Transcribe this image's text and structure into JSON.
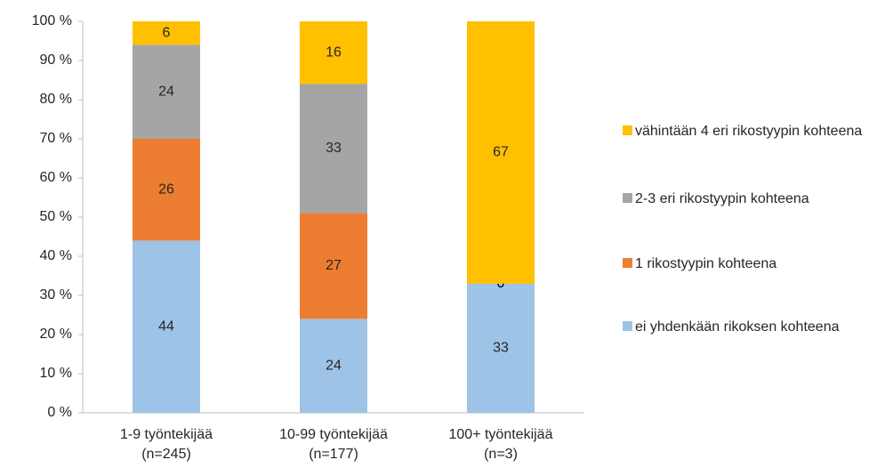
{
  "chart_data": {
    "type": "stacked_bar",
    "categories": [
      "1-9 työntekijää\n(n=245)",
      "10-99 työntekijää\n(n=177)",
      "100+ työntekijää\n(n=3)"
    ],
    "series": [
      {
        "name": "ei yhdenkään rikoksen kohteena",
        "color": "#9DC3E6",
        "values": [
          44,
          24,
          33
        ]
      },
      {
        "name": "1 rikostyypin kohteena",
        "color": "#ED7D31",
        "values": [
          26,
          27,
          0
        ]
      },
      {
        "name": "2-3 eri rikostyypin kohteena",
        "color": "#A5A5A5",
        "values": [
          24,
          33,
          null
        ]
      },
      {
        "name": "vähintään 4 eri rikostyypin kohteena",
        "color": "#FFC000",
        "values": [
          6,
          16,
          67
        ]
      }
    ],
    "ylim": [
      0,
      100
    ],
    "yticks": [
      {
        "value": 0,
        "label": "0 %"
      },
      {
        "value": 10,
        "label": "10 %"
      },
      {
        "value": 20,
        "label": "20 %"
      },
      {
        "value": 30,
        "label": "30 %"
      },
      {
        "value": 40,
        "label": "40 %"
      },
      {
        "value": 50,
        "label": "50 %"
      },
      {
        "value": 60,
        "label": "60 %"
      },
      {
        "value": 70,
        "label": "70 %"
      },
      {
        "value": 80,
        "label": "80 %"
      },
      {
        "value": 90,
        "label": "90 %"
      },
      {
        "value": 100,
        "label": "100 %"
      }
    ],
    "legend": "right"
  }
}
